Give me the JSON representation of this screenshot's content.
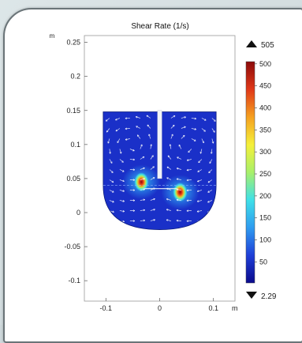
{
  "chart_data": {
    "type": "heatmap",
    "title": "Shear Rate (1/s)",
    "xunit": "m",
    "yunit": "m",
    "xlim": [
      -0.14,
      0.14
    ],
    "ylim": [
      -0.13,
      0.26
    ],
    "x_ticks": [
      -0.1,
      0,
      0.1
    ],
    "x_tick_labels": [
      "-0.1",
      "0",
      "0.1"
    ],
    "y_ticks": [
      0.25,
      0.2,
      0.15,
      0.1,
      0.05,
      0,
      -0.05,
      -0.1
    ],
    "y_tick_labels": [
      "0.25",
      "0.2",
      "0.15",
      "0.1",
      "0.05",
      "0",
      "-0.05",
      "-0.1"
    ],
    "colorbar": {
      "max_label": "505",
      "min_label": "2.29",
      "max_value": 505,
      "min_value": 2.29,
      "ticks": [
        500,
        450,
        400,
        350,
        300,
        250,
        200,
        150,
        100,
        50
      ],
      "tick_labels": [
        "500",
        "450",
        "400",
        "350",
        "300",
        "250",
        "200",
        "150",
        "100",
        "50"
      ],
      "colormap": [
        "#0a0a8c",
        "#1f3fd8",
        "#2f9cf0",
        "#3fe0e8",
        "#a8f06a",
        "#f5f03a",
        "#f5a020",
        "#e03818",
        "#8c0a0a"
      ]
    },
    "geometry_units": "m",
    "tank": {
      "x_min": -0.105,
      "x_max": 0.105,
      "y_bottom": -0.025,
      "y_top": 0.148,
      "wall_y": 0.04
    },
    "shaft": {
      "x_min": -0.004,
      "x_max": 0.004,
      "y_min": 0.05,
      "y_max": 0.15
    },
    "impeller_hotspots": [
      {
        "x": -0.034,
        "y": 0.045,
        "value": 500
      },
      {
        "x": 0.038,
        "y": 0.03,
        "value": 480
      }
    ],
    "background_color": "#1a30c8",
    "grid": false
  }
}
